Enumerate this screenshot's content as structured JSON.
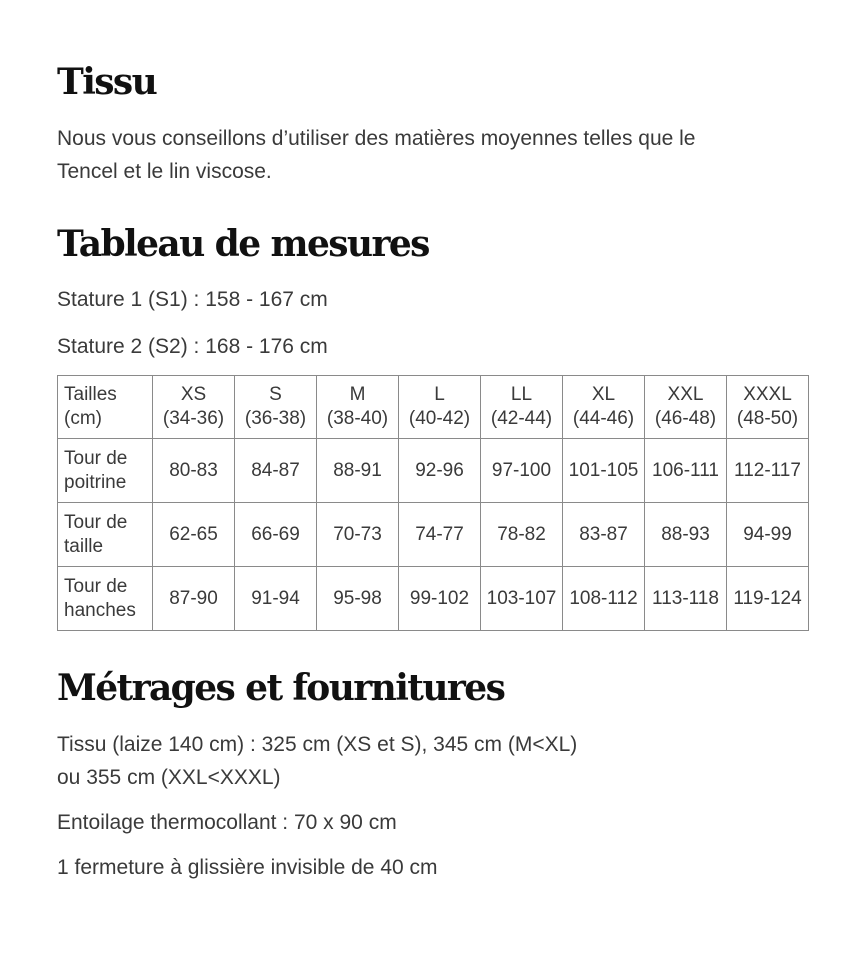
{
  "tissu": {
    "title": "Tissu",
    "text_line1": "Nous vous conseillons d’utiliser des matières moyennes telles que le",
    "text_line2": "Tencel et le lin viscose."
  },
  "mesures": {
    "title": "Tableau de mesures",
    "stature1": "Stature 1 (S1) : 158 - 167 cm",
    "stature2": "Stature 2 (S2) : 168 - 176 cm",
    "table": {
      "header": {
        "line1": "Tailles",
        "line2": "(cm)"
      },
      "sizes": [
        {
          "name": "XS",
          "range": "(34-36)"
        },
        {
          "name": "S",
          "range": "(36-38)"
        },
        {
          "name": "M",
          "range": "(38-40)"
        },
        {
          "name": "L",
          "range": "(40-42)"
        },
        {
          "name": "LL",
          "range": "(42-44)"
        },
        {
          "name": "XL",
          "range": "(44-46)"
        },
        {
          "name": "XXL",
          "range": "(46-48)"
        },
        {
          "name": "XXXL",
          "range": "(48-50)"
        }
      ],
      "rows": [
        {
          "line1": "Tour de",
          "line2": "poitrine",
          "values": [
            "80-83",
            "84-87",
            "88-91",
            "92-96",
            "97-100",
            "101-105",
            "106-111",
            "112-117"
          ]
        },
        {
          "line1": "Tour de",
          "line2": "taille",
          "values": [
            "62-65",
            "66-69",
            "70-73",
            "74-77",
            "78-82",
            "83-87",
            "88-93",
            "94-99"
          ]
        },
        {
          "line1": "Tour de",
          "line2": "hanches",
          "values": [
            "87-90",
            "91-94",
            "95-98",
            "99-102",
            "103-107",
            "108-112",
            "113-118",
            "119-124"
          ]
        }
      ]
    }
  },
  "metrages": {
    "title": "Métrages et fournitures",
    "tissu_line1": "Tissu (laize 140 cm) : 325 cm (XS et S), 345 cm (M<XL)",
    "tissu_line2": "ou 355 cm (XXL<XXXL)",
    "entoilage": "Entoilage thermocollant : 70 x 90 cm",
    "fermeture": "1 fermeture à glissière invisible de 40 cm"
  }
}
